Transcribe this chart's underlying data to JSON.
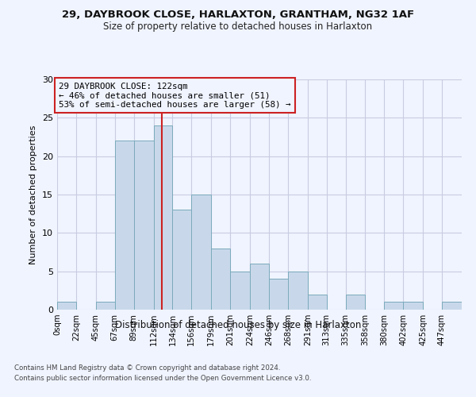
{
  "title1": "29, DAYBROOK CLOSE, HARLAXTON, GRANTHAM, NG32 1AF",
  "title2": "Size of property relative to detached houses in Harlaxton",
  "xlabel": "Distribution of detached houses by size in Harlaxton",
  "ylabel": "Number of detached properties",
  "bin_labels": [
    "0sqm",
    "22sqm",
    "45sqm",
    "67sqm",
    "89sqm",
    "112sqm",
    "134sqm",
    "156sqm",
    "179sqm",
    "201sqm",
    "224sqm",
    "246sqm",
    "268sqm",
    "291sqm",
    "313sqm",
    "335sqm",
    "358sqm",
    "380sqm",
    "402sqm",
    "425sqm",
    "447sqm"
  ],
  "bin_edges": [
    0,
    22,
    45,
    67,
    89,
    112,
    134,
    156,
    179,
    201,
    224,
    246,
    268,
    291,
    313,
    335,
    358,
    380,
    402,
    425,
    447,
    470
  ],
  "counts": [
    1,
    0,
    1,
    22,
    22,
    24,
    13,
    15,
    8,
    5,
    6,
    4,
    5,
    2,
    0,
    2,
    0,
    1,
    1,
    0,
    1
  ],
  "bar_color": "#c8d8ea",
  "bar_edge_color": "#7aaabb",
  "vline_x": 122,
  "vline_color": "#cc2222",
  "annotation_line1": "29 DAYBROOK CLOSE: 122sqm",
  "annotation_line2": "← 46% of detached houses are smaller (51)",
  "annotation_line3": "53% of semi-detached houses are larger (58) →",
  "annotation_box_color": "#cc2222",
  "ylim": [
    0,
    30
  ],
  "yticks": [
    0,
    5,
    10,
    15,
    20,
    25,
    30
  ],
  "footer1": "Contains HM Land Registry data © Crown copyright and database right 2024.",
  "footer2": "Contains public sector information licensed under the Open Government Licence v3.0.",
  "bg_color": "#f0f4ff",
  "grid_color": "#c8cce0"
}
